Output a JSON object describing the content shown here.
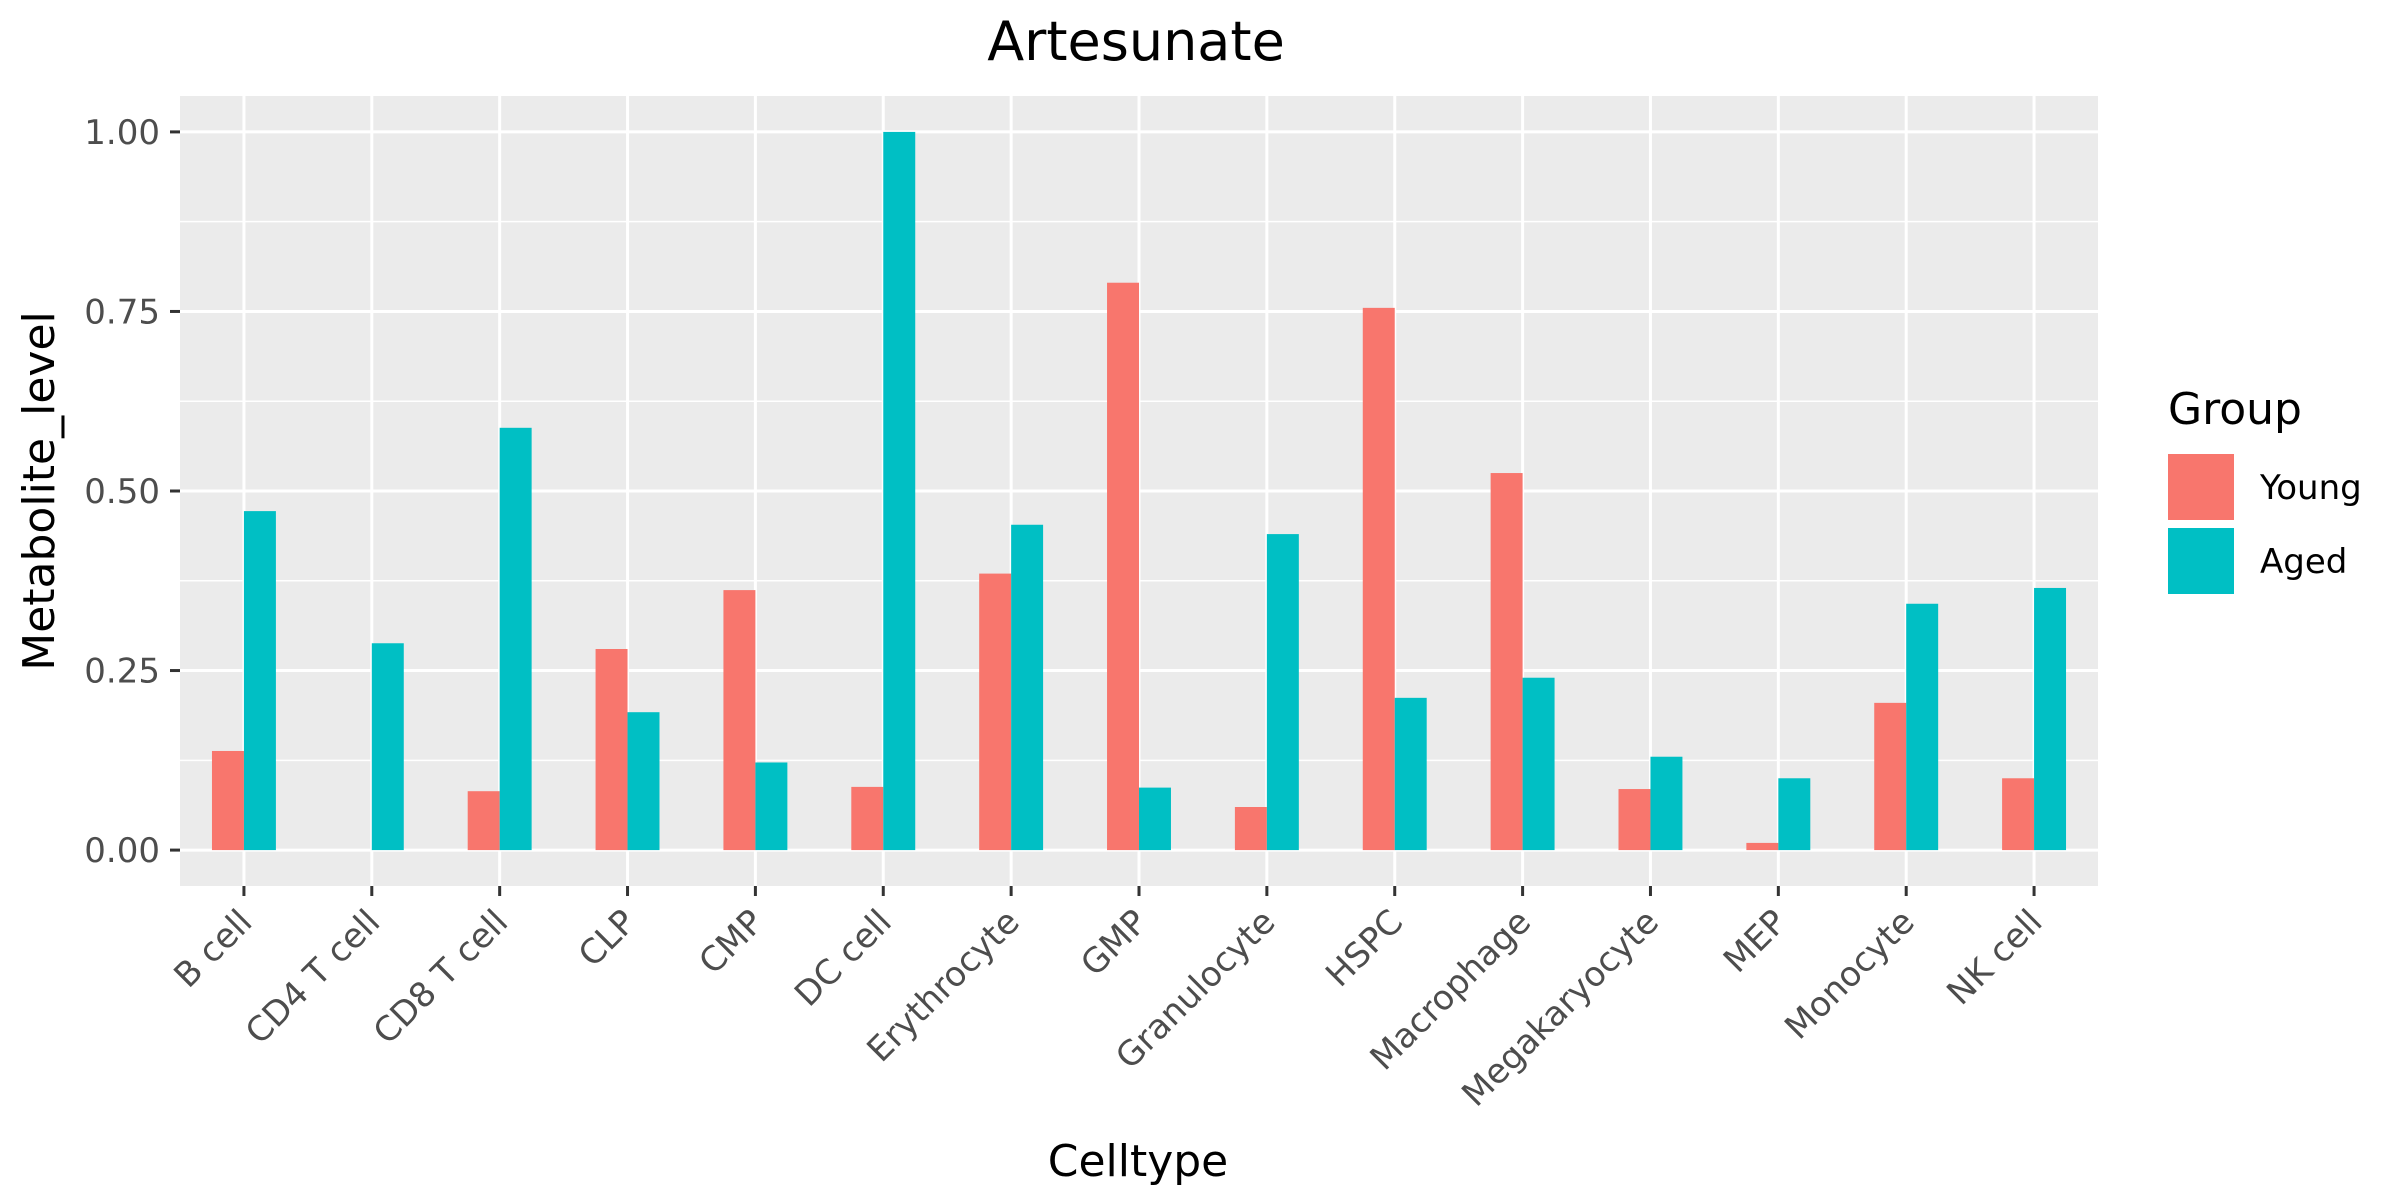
{
  "chart_data": {
    "type": "bar",
    "title": "Artesunate",
    "xlabel": "Celltype",
    "ylabel": "Metabolite_level",
    "ylim": [
      -0.05,
      1.05
    ],
    "yticks": [
      0.0,
      0.25,
      0.5,
      0.75,
      1.0
    ],
    "ytick_labels": [
      "0.00",
      "0.25",
      "0.50",
      "0.75",
      "1.00"
    ],
    "categories": [
      "B cell",
      "CD4 T cell",
      "CD8 T cell",
      "CLP",
      "CMP",
      "DC cell",
      "Erythrocyte",
      "GMP",
      "Granulocyte",
      "HSPC",
      "Macrophage",
      "Megakaryocyte",
      "MEP",
      "Monocyte",
      "NK cell"
    ],
    "series": [
      {
        "name": "Young",
        "color": "#F8766D",
        "values": [
          0.138,
          0.0,
          0.082,
          0.28,
          0.362,
          0.088,
          0.385,
          0.79,
          0.06,
          0.755,
          0.525,
          0.085,
          0.01,
          0.205,
          0.1
        ]
      },
      {
        "name": "Aged",
        "color": "#00BFC4",
        "values": [
          0.472,
          0.288,
          0.588,
          0.192,
          0.122,
          1.0,
          0.453,
          0.087,
          0.44,
          0.212,
          0.24,
          0.13,
          0.1,
          0.343,
          0.365
        ]
      }
    ],
    "grid": true,
    "legend": {
      "title": "Group",
      "position": "right"
    },
    "panel_background": "#EBEBEB",
    "grid_color": "#FFFFFF"
  }
}
